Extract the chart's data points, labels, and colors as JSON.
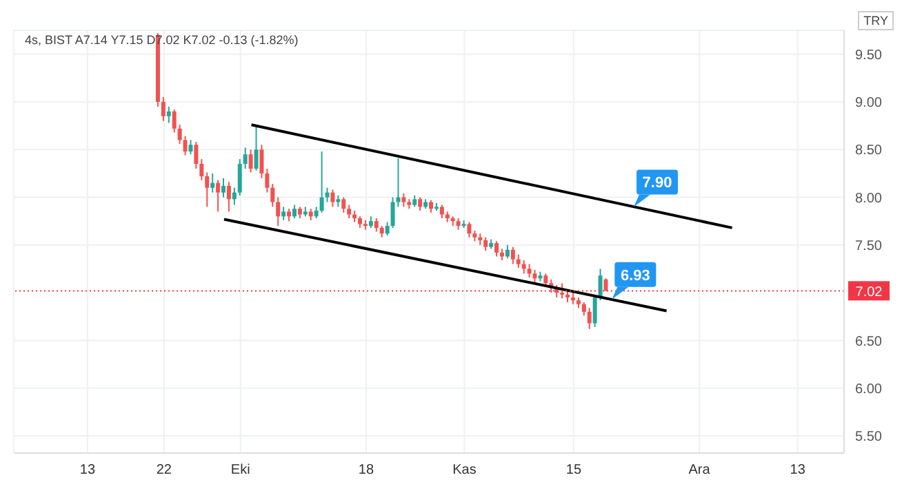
{
  "chart_data": {
    "type": "candlestick",
    "title": "4s, BIST  A7.14 Y7.15 D7.02 K7.02 -0.13 (-1.82%)",
    "annotations": [
      "TRY",
      {
        "text": "7.90",
        "y": 7.9
      },
      {
        "text": "6.93",
        "y": 6.93
      }
    ],
    "categories": [
      null,
      null,
      null,
      null,
      null,
      null,
      null,
      null,
      null,
      null,
      null,
      null,
      null,
      "13",
      null,
      null,
      null,
      null,
      null,
      null,
      null,
      null,
      null,
      null,
      null,
      null,
      null,
      "22",
      null,
      null,
      null,
      null,
      null,
      null,
      null,
      null,
      null,
      null,
      null,
      null,
      null,
      "Eki",
      null,
      null,
      null,
      null,
      null,
      null,
      null,
      null,
      null,
      null,
      null,
      null,
      null,
      null,
      null,
      null,
      null,
      null,
      null,
      null,
      null,
      null,
      "18",
      null,
      null,
      null,
      null,
      null,
      null,
      null,
      null,
      null,
      null,
      null,
      null,
      null,
      null,
      null,
      null,
      null,
      "Kas",
      null,
      null,
      null,
      null,
      null,
      null,
      null,
      null,
      null,
      null,
      null,
      null,
      null,
      null,
      null,
      null,
      null,
      null,
      null,
      "15",
      null,
      null,
      null,
      null,
      null,
      null,
      null,
      null,
      null,
      null,
      null,
      null,
      null,
      null,
      null,
      null,
      null,
      null,
      null,
      null,
      null,
      null,
      "Ara",
      null,
      null,
      null,
      null,
      null,
      null,
      null,
      null,
      null,
      null,
      null,
      null,
      null,
      null,
      null,
      null,
      null,
      "13",
      null,
      null,
      null,
      null,
      null,
      null,
      null,
      null
    ],
    "ohlc": [
      null,
      null,
      null,
      null,
      null,
      null,
      null,
      null,
      null,
      null,
      null,
      null,
      null,
      null,
      null,
      null,
      null,
      null,
      null,
      null,
      null,
      null,
      null,
      null,
      null,
      null,
      [
        9.7,
        9.72,
        8.95,
        9.0
      ],
      [
        9.0,
        9.05,
        8.8,
        8.85
      ],
      [
        8.85,
        8.95,
        8.78,
        8.9
      ],
      [
        8.9,
        8.92,
        8.68,
        8.72
      ],
      [
        8.72,
        8.76,
        8.56,
        8.6
      ],
      [
        8.6,
        8.64,
        8.44,
        8.48
      ],
      [
        8.48,
        8.6,
        8.45,
        8.55
      ],
      [
        8.55,
        8.58,
        8.3,
        8.35
      ],
      [
        8.35,
        8.4,
        8.18,
        8.22
      ],
      [
        8.22,
        8.26,
        7.9,
        8.1
      ],
      [
        8.1,
        8.25,
        8.05,
        8.15
      ],
      [
        8.15,
        8.18,
        7.85,
        8.05
      ],
      [
        8.05,
        8.2,
        8.0,
        8.12
      ],
      [
        8.12,
        8.16,
        7.85,
        7.98
      ],
      [
        7.98,
        8.1,
        7.92,
        8.05
      ],
      [
        8.05,
        8.4,
        8.02,
        8.35
      ],
      [
        8.35,
        8.52,
        8.3,
        8.45
      ],
      [
        8.45,
        8.5,
        8.26,
        8.3
      ],
      [
        8.3,
        8.76,
        8.28,
        8.5
      ],
      [
        8.5,
        8.55,
        8.2,
        8.25
      ],
      [
        8.25,
        8.3,
        8.05,
        8.1
      ],
      [
        8.1,
        8.14,
        7.9,
        7.95
      ],
      [
        7.95,
        8.0,
        7.7,
        7.8
      ],
      [
        7.8,
        7.9,
        7.76,
        7.85
      ],
      [
        7.85,
        7.88,
        7.75,
        7.8
      ],
      [
        7.8,
        7.92,
        7.78,
        7.88
      ],
      [
        7.88,
        7.9,
        7.78,
        7.82
      ],
      [
        7.82,
        7.9,
        7.8,
        7.85
      ],
      [
        7.85,
        7.88,
        7.76,
        7.8
      ],
      [
        7.8,
        7.9,
        7.78,
        7.86
      ],
      [
        7.86,
        8.48,
        7.84,
        8.0
      ],
      [
        8.0,
        8.1,
        7.95,
        8.05
      ],
      [
        8.05,
        8.08,
        7.9,
        7.95
      ],
      [
        7.95,
        8.02,
        7.9,
        7.98
      ],
      [
        7.98,
        8.0,
        7.84,
        7.88
      ],
      [
        7.88,
        7.92,
        7.78,
        7.82
      ],
      [
        7.82,
        7.86,
        7.74,
        7.78
      ],
      [
        7.78,
        7.8,
        7.68,
        7.72
      ],
      [
        7.72,
        7.76,
        7.66,
        7.7
      ],
      [
        7.7,
        7.8,
        7.68,
        7.75
      ],
      [
        7.75,
        7.78,
        7.64,
        7.68
      ],
      [
        7.68,
        7.7,
        7.58,
        7.62
      ],
      [
        7.62,
        7.74,
        7.6,
        7.7
      ],
      [
        7.7,
        8.0,
        7.68,
        7.95
      ],
      [
        7.95,
        8.41,
        7.9,
        8.0
      ],
      [
        8.0,
        8.04,
        7.9,
        7.95
      ],
      [
        7.95,
        7.98,
        7.88,
        7.92
      ],
      [
        7.92,
        8.02,
        7.9,
        7.98
      ],
      [
        7.98,
        8.0,
        7.86,
        7.9
      ],
      [
        7.9,
        7.98,
        7.88,
        7.95
      ],
      [
        7.95,
        7.97,
        7.84,
        7.88
      ],
      [
        7.88,
        7.94,
        7.86,
        7.9
      ],
      [
        7.9,
        7.92,
        7.78,
        7.82
      ],
      [
        7.82,
        7.85,
        7.74,
        7.78
      ],
      [
        7.78,
        7.8,
        7.7,
        7.75
      ],
      [
        7.75,
        7.78,
        7.66,
        7.7
      ],
      [
        7.7,
        7.76,
        7.68,
        7.72
      ],
      [
        7.72,
        7.74,
        7.58,
        7.62
      ],
      [
        7.62,
        7.65,
        7.54,
        7.58
      ],
      [
        7.58,
        7.62,
        7.5,
        7.55
      ],
      [
        7.55,
        7.58,
        7.44,
        7.48
      ],
      [
        7.48,
        7.56,
        7.46,
        7.52
      ],
      [
        7.52,
        7.54,
        7.38,
        7.42
      ],
      [
        7.42,
        7.46,
        7.34,
        7.38
      ],
      [
        7.38,
        7.5,
        7.36,
        7.45
      ],
      [
        7.45,
        7.48,
        7.3,
        7.35
      ],
      [
        7.35,
        7.4,
        7.26,
        7.3
      ],
      [
        7.3,
        7.34,
        7.2,
        7.25
      ],
      [
        7.25,
        7.3,
        7.16,
        7.2
      ],
      [
        7.2,
        7.24,
        7.1,
        7.15
      ],
      [
        7.15,
        7.22,
        7.12,
        7.18
      ],
      [
        7.18,
        7.2,
        7.06,
        7.1
      ],
      [
        7.1,
        7.14,
        7.0,
        7.05
      ],
      [
        7.05,
        7.08,
        6.95,
        7.0
      ],
      [
        7.0,
        7.1,
        6.94,
        6.98
      ],
      [
        6.98,
        7.02,
        6.9,
        6.95
      ],
      [
        6.95,
        7.0,
        6.88,
        6.92
      ],
      [
        6.92,
        6.95,
        6.84,
        6.88
      ],
      [
        6.88,
        6.9,
        6.76,
        6.8
      ],
      [
        6.8,
        6.84,
        6.62,
        6.68
      ],
      [
        6.68,
        6.98,
        6.64,
        6.95
      ],
      [
        6.95,
        7.25,
        6.92,
        7.18
      ],
      [
        7.14,
        7.15,
        7.02,
        7.02
      ],
      null,
      null,
      null,
      null,
      null,
      null,
      null,
      null,
      null,
      null,
      null,
      null,
      null,
      null,
      null,
      null,
      null,
      null,
      null,
      null,
      null,
      null,
      null,
      null,
      null,
      null,
      null,
      null,
      null,
      null,
      null,
      null,
      null,
      null,
      null,
      null,
      null,
      null,
      null,
      null,
      null,
      null,
      null
    ],
    "series": [
      {
        "type": "line",
        "color": "#000000",
        "values": [
          null,
          null,
          null,
          null,
          null,
          null,
          null,
          null,
          null,
          null,
          null,
          null,
          null,
          null,
          null,
          null,
          null,
          null,
          null,
          null,
          null,
          null,
          null,
          null,
          null,
          null,
          null,
          null,
          null,
          null,
          null,
          null,
          null,
          null,
          null,
          null,
          null,
          null,
          null,
          null,
          null,
          null,
          null,
          8.76,
          null,
          null,
          null,
          null,
          null,
          null,
          null,
          null,
          null,
          null,
          null,
          null,
          null,
          null,
          null,
          null,
          null,
          null,
          null,
          null,
          null,
          null,
          null,
          null,
          null,
          null,
          null,
          null,
          null,
          null,
          null,
          null,
          null,
          null,
          null,
          null,
          null,
          null,
          null,
          null,
          null,
          null,
          null,
          null,
          null,
          null,
          null,
          null,
          null,
          null,
          null,
          null,
          null,
          null,
          null,
          null,
          null,
          null,
          null,
          null,
          null,
          null,
          null,
          null,
          null,
          null,
          null,
          null,
          null,
          null,
          null,
          null,
          null,
          null,
          null,
          null,
          null,
          null,
          null,
          null,
          null,
          null,
          null,
          null,
          null,
          null,
          null,
          7.68,
          null,
          null,
          null,
          null,
          null,
          null,
          null,
          null,
          null,
          null,
          null,
          null,
          null,
          null,
          null,
          null,
          null,
          null,
          null,
          null
        ]
      },
      {
        "type": "line",
        "color": "#000000",
        "values": [
          null,
          null,
          null,
          null,
          null,
          null,
          null,
          null,
          null,
          null,
          null,
          null,
          null,
          null,
          null,
          null,
          null,
          null,
          null,
          null,
          null,
          null,
          null,
          null,
          null,
          null,
          null,
          null,
          null,
          null,
          null,
          null,
          null,
          null,
          null,
          null,
          null,
          null,
          7.77,
          null,
          null,
          null,
          null,
          null,
          null,
          null,
          null,
          null,
          null,
          null,
          null,
          null,
          null,
          null,
          null,
          null,
          null,
          null,
          null,
          null,
          null,
          null,
          null,
          null,
          null,
          null,
          null,
          null,
          null,
          null,
          null,
          null,
          null,
          null,
          null,
          null,
          null,
          null,
          null,
          null,
          null,
          null,
          null,
          null,
          null,
          null,
          null,
          null,
          null,
          null,
          null,
          null,
          null,
          null,
          null,
          null,
          null,
          null,
          null,
          null,
          null,
          null,
          null,
          null,
          null,
          null,
          null,
          null,
          null,
          null,
          null,
          null,
          null,
          null,
          null,
          null,
          null,
          null,
          null,
          6.81,
          null,
          null,
          null,
          null,
          null,
          null,
          null,
          null,
          null,
          null,
          null,
          null,
          null,
          null,
          null,
          null,
          null,
          null,
          null,
          null,
          null,
          null,
          null,
          null,
          null,
          null,
          null,
          null,
          null,
          null,
          null,
          null
        ]
      }
    ],
    "ylim": [
      5.32,
      9.75
    ],
    "yticks": [
      {
        "value": 5.5,
        "label": "5.50"
      },
      {
        "value": 6,
        "label": "6.00"
      },
      {
        "value": 6.5,
        "label": "6.50"
      },
      {
        "value": 7.5,
        "label": "7.50"
      },
      {
        "value": 8,
        "label": "8.00"
      },
      {
        "value": 8.5,
        "label": "8.50"
      },
      {
        "value": 9,
        "label": "9.00"
      },
      {
        "value": 9.5,
        "label": "9.50"
      }
    ],
    "grid": true,
    "ref_lines": [
      {
        "axis": "y",
        "value": 7.02,
        "label": "7.02",
        "color": "#f23645",
        "line_style": "dotted"
      }
    ]
  }
}
